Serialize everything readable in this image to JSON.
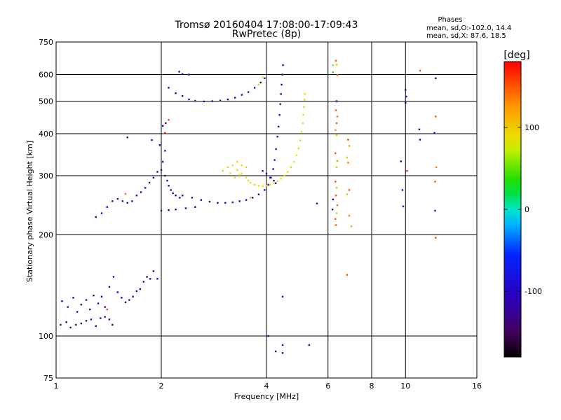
{
  "chart_data": {
    "type": "scatter",
    "title": "Tromsø 20160404 17:08:00-17:09:43",
    "subtitle": "RwPretec (8p)",
    "xlabel": "Frequency [MHz]",
    "ylabel": "Stationary phase Virtual Height [km]",
    "x_scale": "log",
    "y_scale": "log",
    "xlim": [
      1,
      16
    ],
    "ylim": [
      75,
      750
    ],
    "x_ticks": [
      1,
      2,
      4,
      6,
      8,
      10,
      16
    ],
    "y_ticks": [
      75,
      100,
      200,
      300,
      400,
      500,
      600,
      750
    ],
    "grid": true,
    "legend": {
      "title": "Phases",
      "lines": [
        "mean, sd,O:-102.0, 14.4",
        "mean, sd,X:  87.6, 18.5"
      ],
      "placement": "top-right"
    },
    "colorbar": {
      "title": "[deg]",
      "ticks": [
        100,
        0,
        -100
      ],
      "range": [
        -180,
        180
      ],
      "colormap": "rainbow",
      "placement": "right"
    },
    "series": [
      {
        "name": "O",
        "points": [
          [
            1.04,
            127,
            -110
          ],
          [
            1.08,
            122,
            -115
          ],
          [
            1.12,
            130,
            -105
          ],
          [
            1.15,
            118,
            -120
          ],
          [
            1.18,
            124,
            -112
          ],
          [
            1.22,
            128,
            -108
          ],
          [
            1.25,
            120,
            -116
          ],
          [
            1.28,
            132,
            -104
          ],
          [
            1.32,
            125,
            -118
          ],
          [
            1.35,
            131,
            -110
          ],
          [
            1.38,
            122,
            -114
          ],
          [
            1.42,
            140,
            -106
          ],
          [
            1.46,
            150,
            -112
          ],
          [
            1.5,
            135,
            -118
          ],
          [
            1.54,
            130,
            -105
          ],
          [
            1.58,
            126,
            -116
          ],
          [
            1.62,
            128,
            -110
          ],
          [
            1.66,
            131,
            -120
          ],
          [
            1.7,
            136,
            -108
          ],
          [
            1.74,
            138,
            -114
          ],
          [
            1.78,
            145,
            -102
          ],
          [
            1.82,
            150,
            -118
          ],
          [
            1.86,
            148,
            -106
          ],
          [
            1.9,
            156,
            -112
          ],
          [
            1.95,
            148,
            -110
          ],
          [
            1.03,
            108,
            -125
          ],
          [
            1.07,
            110,
            -128
          ],
          [
            1.1,
            106,
            -122
          ],
          [
            1.14,
            108,
            -130
          ],
          [
            1.18,
            109,
            -124
          ],
          [
            1.22,
            111,
            -126
          ],
          [
            1.26,
            112,
            -120
          ],
          [
            1.3,
            107,
            -128
          ],
          [
            1.34,
            113,
            -122
          ],
          [
            1.38,
            114,
            -127
          ],
          [
            1.42,
            112,
            -121
          ],
          [
            1.45,
            108,
            -126
          ],
          [
            1.3,
            226,
            -110
          ],
          [
            1.35,
            232,
            -115
          ],
          [
            1.4,
            242,
            -108
          ],
          [
            1.45,
            252,
            -112
          ],
          [
            1.5,
            256,
            -105
          ],
          [
            1.55,
            252,
            -118
          ],
          [
            1.6,
            249,
            -110
          ],
          [
            1.65,
            252,
            -114
          ],
          [
            1.7,
            262,
            -108
          ],
          [
            1.75,
            268,
            -112
          ],
          [
            1.8,
            276,
            -104
          ],
          [
            1.85,
            286,
            -116
          ],
          [
            1.9,
            296,
            -110
          ],
          [
            1.95,
            308,
            -106
          ],
          [
            2.0,
            312,
            -114
          ],
          [
            2.02,
            330,
            -108
          ],
          [
            2.05,
            300,
            -120
          ],
          [
            2.08,
            290,
            -104
          ],
          [
            2.1,
            280,
            -116
          ],
          [
            2.13,
            272,
            -110
          ],
          [
            2.16,
            266,
            -112
          ],
          [
            2.2,
            262,
            -106
          ],
          [
            2.26,
            258,
            -118
          ],
          [
            1.88,
            383,
            -108
          ],
          [
            1.98,
            370,
            -112
          ],
          [
            2.05,
            356,
            -104
          ],
          [
            2.02,
            422,
            -115
          ],
          [
            2.06,
            430,
            -110
          ],
          [
            2.0,
            236,
            -110
          ],
          [
            2.1,
            237,
            -108
          ],
          [
            2.2,
            238,
            -112
          ],
          [
            2.35,
            240,
            -106
          ],
          [
            2.5,
            242,
            -110
          ],
          [
            2.3,
            262,
            -108
          ],
          [
            2.45,
            258,
            -112
          ],
          [
            2.6,
            254,
            -110
          ],
          [
            2.75,
            251,
            -114
          ],
          [
            2.9,
            249,
            -106
          ],
          [
            3.05,
            249,
            -112
          ],
          [
            3.2,
            250,
            -110
          ],
          [
            3.35,
            252,
            -115
          ],
          [
            3.5,
            254,
            -108
          ],
          [
            3.65,
            258,
            -112
          ],
          [
            3.8,
            264,
            -110
          ],
          [
            3.95,
            272,
            -106
          ],
          [
            4.05,
            282,
            -112
          ],
          [
            4.12,
            296,
            -108
          ],
          [
            4.18,
            314,
            -110
          ],
          [
            4.22,
            334,
            -114
          ],
          [
            4.26,
            360,
            -106
          ],
          [
            4.3,
            392,
            -112
          ],
          [
            4.33,
            420,
            -110
          ],
          [
            4.36,
            455,
            -108
          ],
          [
            4.38,
            490,
            -114
          ],
          [
            4.4,
            525,
            -106
          ],
          [
            4.42,
            560,
            -112
          ],
          [
            4.44,
            600,
            -110
          ],
          [
            4.46,
            640,
            -108
          ],
          [
            2.25,
            612,
            -110
          ],
          [
            2.3,
            602,
            -106
          ],
          [
            2.1,
            548,
            -112
          ],
          [
            2.2,
            528,
            -108
          ],
          [
            2.3,
            518,
            -114
          ],
          [
            2.4,
            506,
            -110
          ],
          [
            2.5,
            501,
            -106
          ],
          [
            2.65,
            499,
            -112
          ],
          [
            2.8,
            500,
            -110
          ],
          [
            2.95,
            502,
            -108
          ],
          [
            3.1,
            506,
            -114
          ],
          [
            3.25,
            512,
            -110
          ],
          [
            3.4,
            522,
            -106
          ],
          [
            3.55,
            532,
            -112
          ],
          [
            3.7,
            548,
            -110
          ],
          [
            3.85,
            568,
            -108
          ],
          [
            3.95,
            585,
            -112
          ],
          [
            3.9,
            310,
            -110
          ],
          [
            4.0,
            304,
            -106
          ],
          [
            4.1,
            296,
            -112
          ],
          [
            4.2,
            290,
            -108
          ],
          [
            4.25,
            285,
            -114
          ],
          [
            4.05,
            100,
            -110
          ],
          [
            4.45,
            131,
            -108
          ],
          [
            4.45,
            94,
            -106
          ],
          [
            4.45,
            89,
            -112
          ],
          [
            5.3,
            94,
            -110
          ],
          [
            4.25,
            90,
            -112
          ],
          [
            5.58,
            248,
            -112
          ],
          [
            6.35,
            500,
            -110
          ],
          [
            6.2,
            255,
            -108
          ],
          [
            6.18,
            238,
            -106
          ],
          [
            9.7,
            331,
            -110
          ],
          [
            9.8,
            272,
            -112
          ],
          [
            9.85,
            243,
            -108
          ],
          [
            10.0,
            540,
            -110
          ],
          [
            10.05,
            516,
            -106
          ],
          [
            10.0,
            494,
            -112
          ],
          [
            10.95,
            412,
            -110
          ],
          [
            11.0,
            384,
            -108
          ],
          [
            12.2,
            585,
            -112
          ],
          [
            12.1,
            402,
            -106
          ],
          [
            12.15,
            236,
            -110
          ],
          [
            1.6,
            390,
            -110
          ],
          [
            2.4,
            600,
            -108
          ]
        ]
      },
      {
        "name": "X",
        "points": [
          [
            3.1,
            318,
            90
          ],
          [
            3.2,
            322,
            85
          ],
          [
            3.3,
            312,
            92
          ],
          [
            3.4,
            304,
            88
          ],
          [
            3.5,
            296,
            84
          ],
          [
            3.55,
            290,
            90
          ],
          [
            3.6,
            286,
            86
          ],
          [
            3.7,
            282,
            92
          ],
          [
            3.8,
            280,
            88
          ],
          [
            3.9,
            279,
            84
          ],
          [
            4.0,
            280,
            90
          ],
          [
            4.1,
            282,
            86
          ],
          [
            4.2,
            285,
            92
          ],
          [
            4.3,
            289,
            88
          ],
          [
            4.4,
            294,
            84
          ],
          [
            4.5,
            300,
            90
          ],
          [
            4.6,
            308,
            86
          ],
          [
            4.7,
            318,
            92
          ],
          [
            4.8,
            330,
            88
          ],
          [
            4.88,
            345,
            84
          ],
          [
            4.94,
            362,
            90
          ],
          [
            5.0,
            382,
            86
          ],
          [
            5.04,
            405,
            92
          ],
          [
            5.08,
            430,
            88
          ],
          [
            5.1,
            455,
            84
          ],
          [
            5.12,
            480,
            90
          ],
          [
            5.14,
            505,
            86
          ],
          [
            5.15,
            525,
            92
          ],
          [
            3.3,
            330,
            95
          ],
          [
            3.4,
            322,
            88
          ],
          [
            3.5,
            318,
            92
          ],
          [
            3.15,
            305,
            86
          ],
          [
            3.25,
            296,
            90
          ],
          [
            3.35,
            302,
            84
          ],
          [
            3.0,
            310,
            92
          ],
          [
            3.8,
            560,
            88
          ],
          [
            3.9,
            590,
            86
          ],
          [
            6.32,
            660,
            150
          ],
          [
            6.35,
            642,
            100
          ],
          [
            6.38,
            598,
            150
          ],
          [
            6.32,
            470,
            150
          ],
          [
            6.38,
            450,
            140
          ],
          [
            6.35,
            430,
            150
          ],
          [
            6.3,
            410,
            130
          ],
          [
            6.35,
            396,
            100
          ],
          [
            6.3,
            350,
            150
          ],
          [
            6.38,
            332,
            130
          ],
          [
            6.35,
            318,
            100
          ],
          [
            6.3,
            288,
            150
          ],
          [
            6.35,
            276,
            100
          ],
          [
            6.32,
            262,
            150
          ],
          [
            6.38,
            245,
            150
          ],
          [
            6.35,
            232,
            100
          ],
          [
            6.3,
            223,
            150
          ],
          [
            6.32,
            214,
            150
          ],
          [
            6.85,
            384,
            160
          ],
          [
            6.9,
            368,
            120
          ],
          [
            6.8,
            340,
            100
          ],
          [
            6.85,
            328,
            140
          ],
          [
            6.9,
            272,
            150
          ],
          [
            6.8,
            264,
            110
          ],
          [
            7.0,
            212,
            120
          ],
          [
            6.8,
            152,
            150
          ],
          [
            11.0,
            616,
            150
          ],
          [
            12.2,
            450,
            150
          ],
          [
            12.25,
            318,
            130
          ],
          [
            12.15,
            288,
            150
          ],
          [
            12.2,
            196,
            150
          ],
          [
            6.2,
            640,
            60
          ],
          [
            6.2,
            610,
            40
          ],
          [
            6.9,
            228,
            130
          ],
          [
            10.1,
            310,
            170
          ],
          [
            3.6,
            258,
            120
          ],
          [
            2.05,
            402,
            180
          ],
          [
            2.1,
            440,
            160
          ],
          [
            1.58,
            265,
            140
          ],
          [
            1.4,
            120,
            160
          ]
        ]
      }
    ]
  }
}
